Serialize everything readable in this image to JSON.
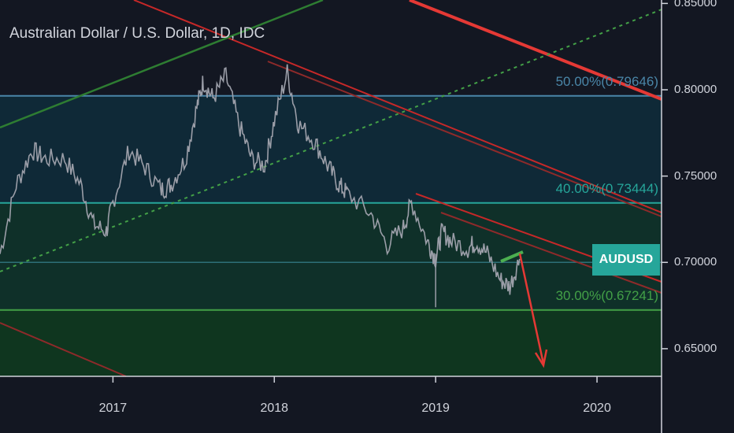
{
  "chart_data": {
    "type": "line",
    "title": "Australian Dollar / U.S. Dollar, 1D, IDC",
    "symbol": "AUDUSD",
    "x_range": [
      2016.3,
      2020.4
    ],
    "ylim": [
      0.634,
      0.852
    ],
    "xticks": [
      {
        "value": 2017,
        "label": "2017"
      },
      {
        "value": 2018,
        "label": "2018"
      },
      {
        "value": 2019,
        "label": "2019"
      },
      {
        "value": 2020,
        "label": "2020"
      }
    ],
    "yticks": [
      {
        "value": 0.85,
        "label": "0.85000"
      },
      {
        "value": 0.8,
        "label": "0.80000"
      },
      {
        "value": 0.75,
        "label": "0.75000"
      },
      {
        "value": 0.7,
        "label": "0.70000"
      },
      {
        "value": 0.65,
        "label": "0.65000"
      }
    ],
    "series": [
      {
        "x": [
          2016.3,
          2016.4,
          2016.5,
          2016.58,
          2016.7,
          2016.8,
          2016.88,
          2016.96,
          2017.0,
          2017.1,
          2017.2,
          2017.3,
          2017.36,
          2017.45,
          2017.52,
          2017.56,
          2017.62,
          2017.7,
          2017.78,
          2017.86,
          2017.94,
          2018.0,
          2018.08,
          2018.15,
          2018.25,
          2018.33,
          2018.4,
          2018.45,
          2018.6,
          2018.7,
          2018.8,
          2018.85,
          2018.95,
          2019.0,
          2019.04,
          2019.1,
          2019.2,
          2019.25,
          2019.32,
          2019.4,
          2019.46,
          2019.52
        ],
        "y": [
          0.705,
          0.745,
          0.765,
          0.76,
          0.76,
          0.745,
          0.722,
          0.718,
          0.735,
          0.765,
          0.755,
          0.742,
          0.745,
          0.76,
          0.79,
          0.805,
          0.795,
          0.808,
          0.78,
          0.76,
          0.756,
          0.782,
          0.81,
          0.78,
          0.77,
          0.756,
          0.745,
          0.74,
          0.728,
          0.71,
          0.72,
          0.735,
          0.712,
          0.702,
          0.718,
          0.712,
          0.708,
          0.712,
          0.705,
          0.69,
          0.686,
          0.702
        ]
      }
    ],
    "fib_levels": [
      {
        "value": 0.79646,
        "label": "50.00%(0.79646)",
        "color": "#4a86a8"
      },
      {
        "value": 0.73444,
        "label": "40.00%(0.73444)",
        "color": "#26a69a"
      },
      {
        "value": 0.67241,
        "label": "30.00%(0.67241)",
        "color": "#43a047"
      }
    ],
    "current_price": 0.702,
    "colors": {
      "background": "#131722",
      "axis_text": "#d1d4dc",
      "price_line": "#9b9ea8",
      "trend_red": "#d32f2f",
      "trend_green": "#2e7d32",
      "tag_bg": "#26a69a"
    }
  }
}
